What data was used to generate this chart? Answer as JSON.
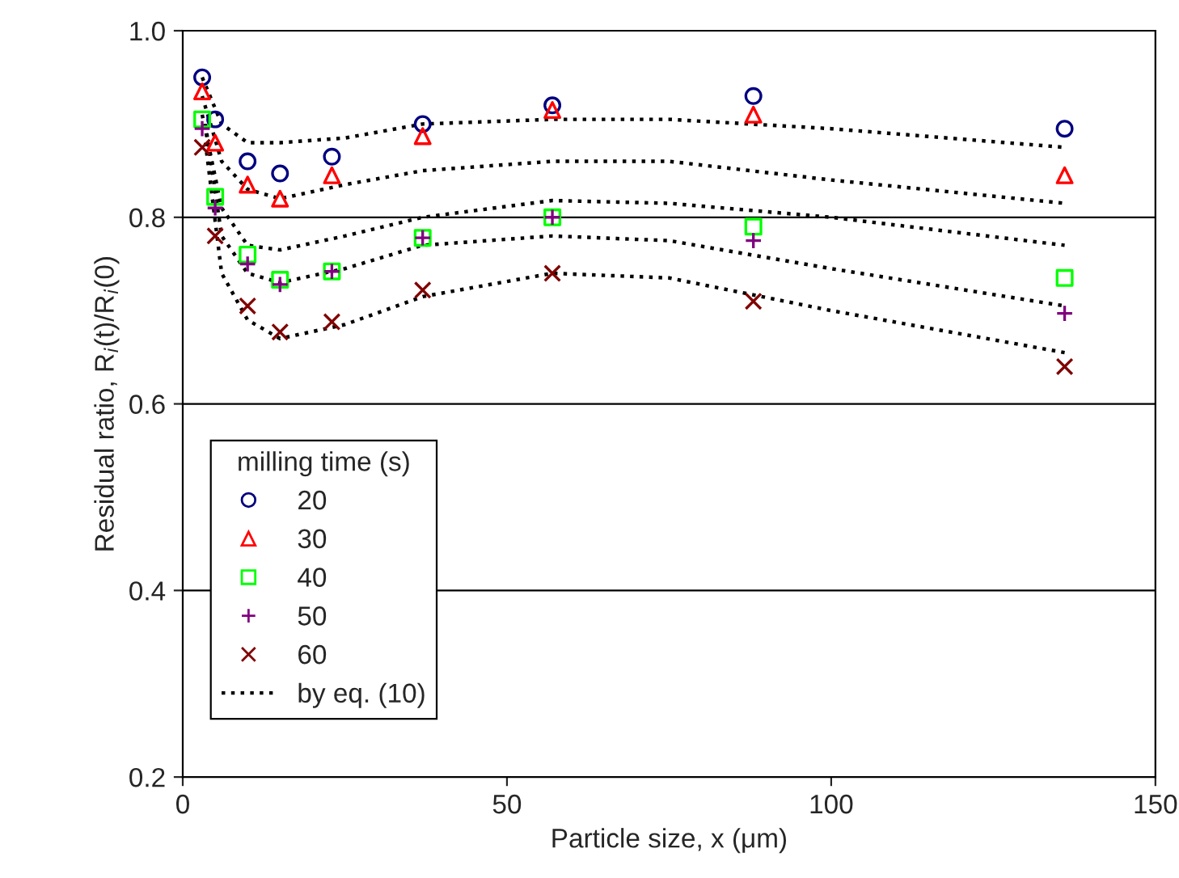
{
  "chart_data": {
    "type": "scatter",
    "xlabel": "Particle size, x (μm)",
    "ylabel": "Residual ratio, R$_{i}$(t)/R$_{i}$(0)",
    "legend_title": "milling time (s)",
    "legend": "bottom left",
    "grid": "y",
    "xlim": [
      0,
      150
    ],
    "xticks": [
      0,
      50,
      100,
      150
    ],
    "ylim": [
      0.2,
      1.0
    ],
    "yticks": [
      0.2,
      0.4,
      0.6,
      0.8,
      {
        "value": 1.0,
        "label": "1.0"
      }
    ],
    "x": [
      3,
      5,
      10,
      15,
      23,
      37,
      57,
      88,
      136
    ],
    "series": [
      {
        "name": "20",
        "marker": "circle",
        "color": "#000080",
        "values": [
          0.95,
          0.905,
          0.86,
          0.847,
          0.865,
          0.9,
          0.92,
          0.93,
          0.895
        ]
      },
      {
        "name": "30",
        "marker": "triangle",
        "color": "#ff0000",
        "values": [
          0.935,
          0.88,
          0.835,
          0.82,
          0.845,
          0.887,
          0.915,
          0.91,
          0.845
        ]
      },
      {
        "name": "40",
        "marker": "square",
        "color": "#00ff00",
        "values": [
          0.905,
          0.822,
          0.76,
          0.733,
          0.742,
          0.778,
          0.8,
          0.79,
          0.735
        ]
      },
      {
        "name": "50",
        "marker": "plus",
        "color": "#800080",
        "values": [
          0.895,
          0.81,
          0.75,
          0.728,
          0.742,
          0.778,
          0.8,
          0.775,
          0.697
        ]
      },
      {
        "name": "60",
        "marker": "cross",
        "color": "#800000",
        "values": [
          0.875,
          0.78,
          0.705,
          0.677,
          0.688,
          0.722,
          0.74,
          0.71,
          0.64
        ]
      },
      {
        "name": "by eq. (10)",
        "type": "line",
        "line_style": "dotted",
        "marker": "none",
        "color": "#000000",
        "x": [
          3,
          6,
          10,
          15,
          25,
          37,
          57,
          75,
          100,
          136
        ],
        "values": [
          0.95,
          0.9,
          0.88,
          0.88,
          0.885,
          0.9,
          0.905,
          0.905,
          0.895,
          0.875
        ]
      },
      {
        "type": "line",
        "line_style": "dotted",
        "marker": "none",
        "color": "#000000",
        "x": [
          3,
          6,
          10,
          15,
          25,
          37,
          57,
          75,
          100,
          136
        ],
        "values": [
          0.93,
          0.86,
          0.83,
          0.82,
          0.835,
          0.85,
          0.86,
          0.86,
          0.84,
          0.815
        ]
      },
      {
        "type": "line",
        "line_style": "dotted",
        "marker": "none",
        "color": "#000000",
        "x": [
          3,
          6,
          10,
          15,
          25,
          37,
          57,
          75,
          100,
          136
        ],
        "values": [
          0.91,
          0.81,
          0.77,
          0.765,
          0.78,
          0.8,
          0.818,
          0.815,
          0.8,
          0.77
        ]
      },
      {
        "type": "line",
        "line_style": "dotted",
        "marker": "none",
        "color": "#000000",
        "x": [
          3.5,
          6,
          10,
          15,
          25,
          37,
          57,
          75,
          100,
          136
        ],
        "values": [
          0.9,
          0.78,
          0.74,
          0.73,
          0.745,
          0.77,
          0.78,
          0.775,
          0.745,
          0.705
        ]
      },
      {
        "type": "line",
        "line_style": "dotted",
        "marker": "none",
        "color": "#000000",
        "x": [
          3.5,
          6,
          10,
          15,
          25,
          37,
          57,
          75,
          100,
          136
        ],
        "values": [
          0.88,
          0.74,
          0.69,
          0.67,
          0.685,
          0.715,
          0.74,
          0.735,
          0.7,
          0.655
        ]
      }
    ]
  }
}
